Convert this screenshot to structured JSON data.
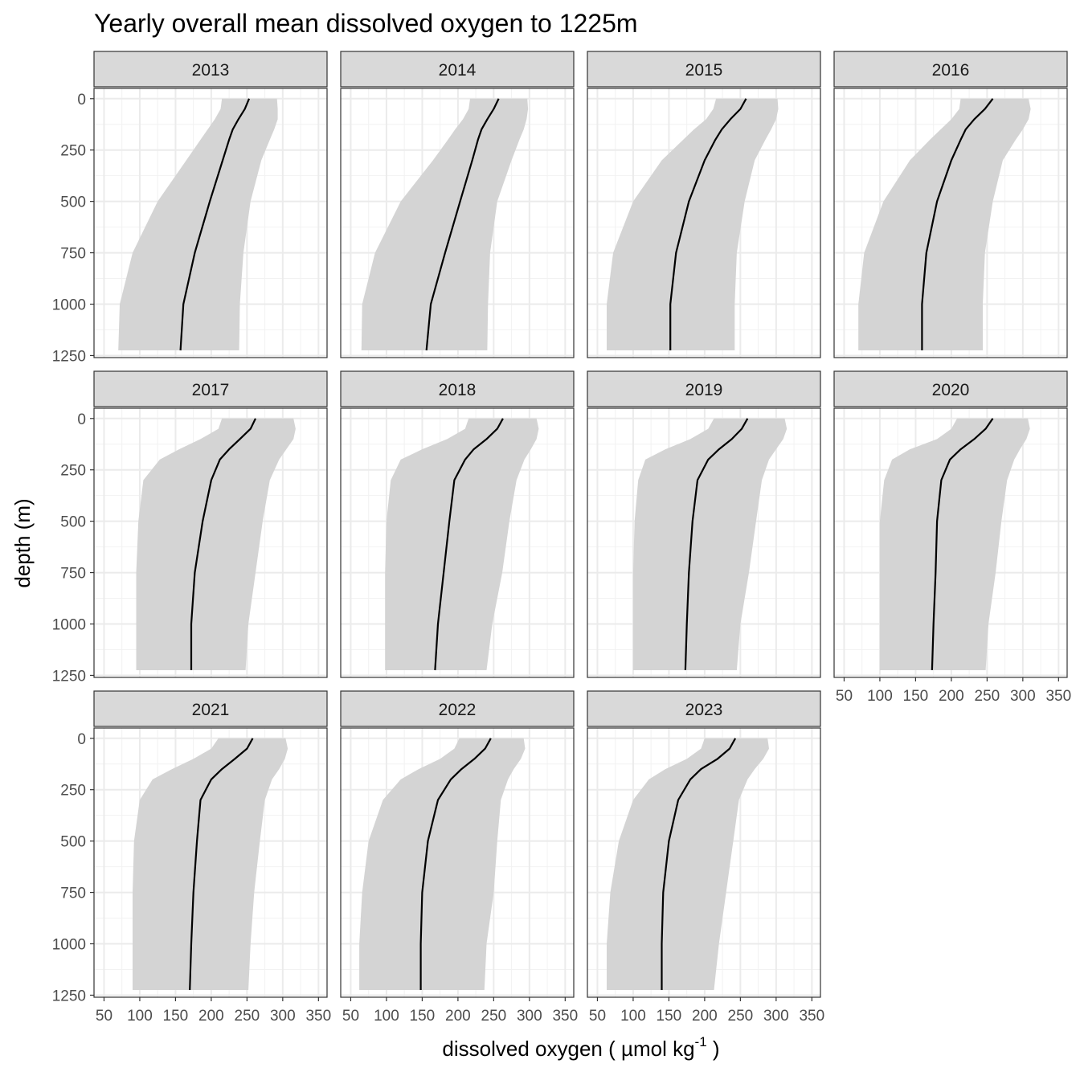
{
  "chart_data": {
    "type": "area",
    "title": "Yearly overall mean dissolved oxygen to 1225m",
    "xlabel": "dissolved oxygen ( µmol kg",
    "xlabel_superscript": "-1",
    "xlabel_suffix": " )",
    "ylabel": "depth (m)",
    "xlim": [
      36,
      362
    ],
    "ylim": [
      1260,
      -50
    ],
    "y_reversed": true,
    "x_ticks": [
      50,
      100,
      150,
      200,
      250,
      300,
      350
    ],
    "y_ticks": [
      0,
      250,
      500,
      750,
      1000,
      1250
    ],
    "grid": true,
    "colors": {
      "mean_line": "#000000",
      "ribbon": "#d4d4d4",
      "grid_major": "#ebebeb",
      "grid_minor": "#f2f2f2",
      "strip_fill": "#d9d9d9",
      "border": "#333333"
    },
    "depths": [
      0,
      50,
      100,
      150,
      200,
      300,
      500,
      750,
      1000,
      1225
    ],
    "panels": [
      {
        "year": "2013",
        "mean": [
          253,
          247,
          238,
          230,
          225,
          216,
          198,
          177,
          161,
          157
        ],
        "lower": [
          215,
          213,
          205,
          195,
          185,
          165,
          125,
          90,
          72,
          70
        ],
        "upper": [
          292,
          293,
          293,
          288,
          282,
          270,
          255,
          245,
          240,
          239
        ]
      },
      {
        "year": "2014",
        "mean": [
          257,
          250,
          241,
          233,
          228,
          220,
          203,
          182,
          162,
          156
        ],
        "lower": [
          217,
          215,
          207,
          196,
          186,
          165,
          120,
          84,
          66,
          65
        ],
        "upper": [
          297,
          298,
          296,
          292,
          286,
          275,
          255,
          245,
          242,
          241
        ]
      },
      {
        "year": "2015",
        "mean": [
          258,
          250,
          236,
          224,
          215,
          200,
          178,
          160,
          152,
          152
        ],
        "lower": [
          216,
          212,
          202,
          185,
          170,
          140,
          100,
          72,
          63,
          63
        ],
        "upper": [
          302,
          303,
          300,
          293,
          285,
          270,
          256,
          245,
          242,
          242
        ]
      },
      {
        "year": "2016",
        "mean": [
          258,
          247,
          232,
          220,
          213,
          200,
          180,
          165,
          159,
          159
        ],
        "lower": [
          213,
          211,
          200,
          185,
          170,
          142,
          105,
          78,
          70,
          70
        ],
        "upper": [
          308,
          311,
          308,
          300,
          290,
          272,
          258,
          247,
          244,
          244
        ]
      },
      {
        "year": "2017",
        "mean": [
          262,
          255,
          240,
          225,
          212,
          200,
          188,
          177,
          172,
          172
        ],
        "lower": [
          215,
          210,
          185,
          155,
          128,
          105,
          98,
          95,
          95,
          95
        ],
        "upper": [
          315,
          318,
          315,
          305,
          295,
          282,
          272,
          262,
          252,
          248
        ]
      },
      {
        "year": "2018",
        "mean": [
          263,
          255,
          240,
          222,
          210,
          195,
          188,
          180,
          172,
          168
        ],
        "lower": [
          215,
          210,
          185,
          150,
          120,
          106,
          100,
          98,
          98,
          98
        ],
        "upper": [
          310,
          313,
          310,
          302,
          293,
          282,
          272,
          262,
          248,
          240
        ]
      },
      {
        "year": "2019",
        "mean": [
          260,
          252,
          238,
          220,
          205,
          190,
          183,
          178,
          175,
          173
        ],
        "lower": [
          213,
          205,
          180,
          145,
          117,
          107,
          102,
          100,
          100,
          100
        ],
        "upper": [
          312,
          315,
          310,
          300,
          290,
          280,
          272,
          262,
          250,
          245
        ]
      },
      {
        "year": "2020",
        "mean": [
          258,
          248,
          232,
          213,
          198,
          186,
          180,
          178,
          175,
          173
        ],
        "lower": [
          208,
          200,
          180,
          142,
          117,
          106,
          100,
          100,
          100,
          100
        ],
        "upper": [
          307,
          310,
          305,
          296,
          288,
          278,
          270,
          262,
          252,
          248
        ]
      },
      {
        "year": "2021",
        "mean": [
          258,
          250,
          233,
          215,
          200,
          185,
          180,
          175,
          172,
          170
        ],
        "lower": [
          210,
          200,
          175,
          145,
          118,
          100,
          92,
          90,
          90,
          90
        ],
        "upper": [
          304,
          307,
          303,
          295,
          285,
          275,
          268,
          260,
          255,
          252
        ]
      },
      {
        "year": "2022",
        "mean": [
          246,
          238,
          223,
          205,
          190,
          172,
          158,
          150,
          148,
          148
        ],
        "lower": [
          202,
          195,
          175,
          145,
          120,
          95,
          75,
          66,
          62,
          62
        ],
        "upper": [
          292,
          294,
          288,
          278,
          270,
          260,
          255,
          250,
          240,
          237
        ]
      },
      {
        "year": "2023",
        "mean": [
          243,
          235,
          218,
          195,
          180,
          163,
          150,
          142,
          140,
          140
        ],
        "lower": [
          200,
          195,
          175,
          145,
          122,
          100,
          80,
          68,
          63,
          63
        ],
        "upper": [
          288,
          290,
          282,
          270,
          260,
          248,
          240,
          230,
          220,
          213
        ]
      }
    ]
  }
}
